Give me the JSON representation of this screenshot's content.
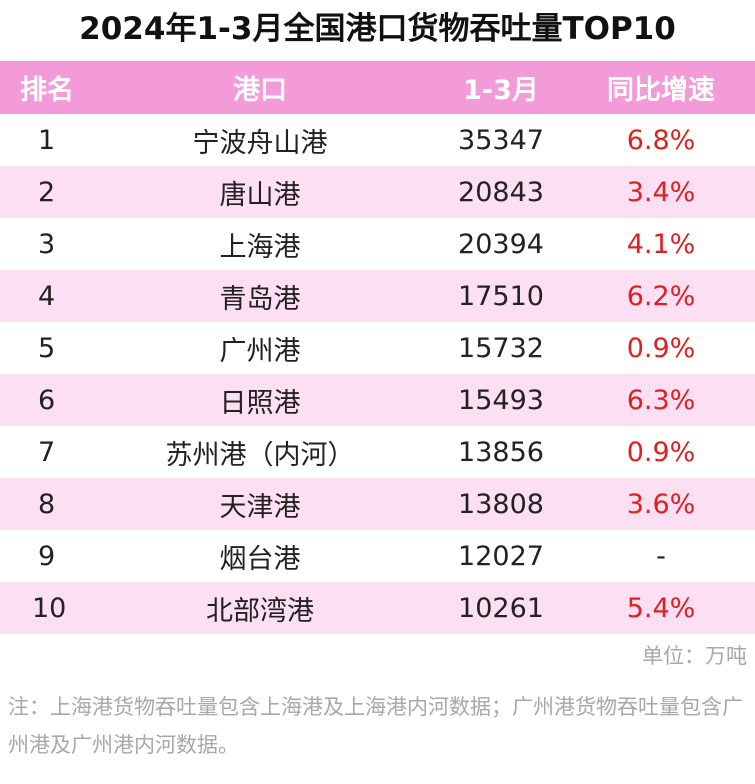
{
  "title": "2024年1-3月全国港口货物吞吐量TOP10",
  "header": {
    "rank": "排名",
    "port": "港口",
    "period": "1-3月",
    "growth": "同比增速"
  },
  "colors": {
    "header_bg": "#f39ad8",
    "row_alt_bg": "#fcdff3",
    "growth_text": "#e02020",
    "note_text": "#a8a8a8"
  },
  "rows": [
    {
      "rank": "1",
      "port": "宁波舟山港",
      "volume": "35347",
      "growth": "6.8%"
    },
    {
      "rank": "2",
      "port": "唐山港",
      "volume": "20843",
      "growth": "3.4%"
    },
    {
      "rank": "3",
      "port": "上海港",
      "volume": "20394",
      "growth": "4.1%"
    },
    {
      "rank": "4",
      "port": "青岛港",
      "volume": "17510",
      "growth": "6.2%"
    },
    {
      "rank": "5",
      "port": "广州港",
      "volume": "15732",
      "growth": "0.9%"
    },
    {
      "rank": "6",
      "port": "日照港",
      "volume": "15493",
      "growth": "6.3%"
    },
    {
      "rank": "7",
      "port": "苏州港（内河）",
      "volume": "13856",
      "growth": "0.9%"
    },
    {
      "rank": "8",
      "port": "天津港",
      "volume": "13808",
      "growth": "3.6%"
    },
    {
      "rank": "9",
      "port": "烟台港",
      "volume": "12027",
      "growth": "-"
    },
    {
      "rank": "10",
      "port": "北部湾港",
      "volume": "10261",
      "growth": "5.4%"
    }
  ],
  "unit": "单位：万吨",
  "note": "注：上海港货物吞吐量包含上海港及上海港内河数据；广州港货物吞吐量包含广州港及广州港内河数据。",
  "chart_data": {
    "type": "table",
    "title": "2024年1-3月全国港口货物吞吐量TOP10",
    "columns": [
      "排名",
      "港口",
      "1-3月",
      "同比增速"
    ],
    "unit": "单位：万吨",
    "rows": [
      [
        "1",
        "宁波舟山港",
        35347,
        "6.8%"
      ],
      [
        "2",
        "唐山港",
        20843,
        "3.4%"
      ],
      [
        "3",
        "上海港",
        20394,
        "4.1%"
      ],
      [
        "4",
        "青岛港",
        17510,
        "6.2%"
      ],
      [
        "5",
        "广州港",
        15732,
        "0.9%"
      ],
      [
        "6",
        "日照港",
        15493,
        "6.3%"
      ],
      [
        "7",
        "苏州港（内河）",
        13856,
        "0.9%"
      ],
      [
        "8",
        "天津港",
        13808,
        "3.6%"
      ],
      [
        "9",
        "烟台港",
        12027,
        "-"
      ],
      [
        "10",
        "北部湾港",
        10261,
        "5.4%"
      ]
    ]
  }
}
